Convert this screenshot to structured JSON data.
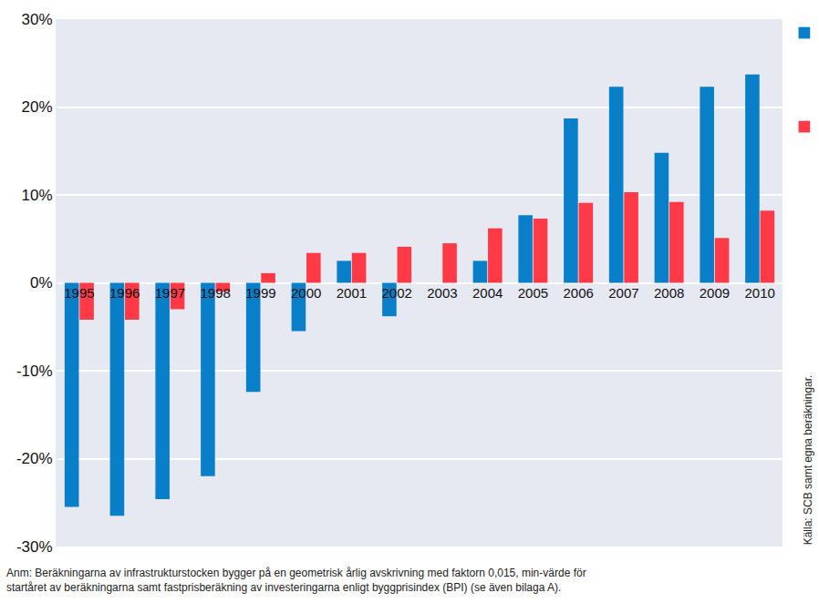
{
  "chart_data": {
    "type": "bar",
    "categories": [
      "1995",
      "1996",
      "1997",
      "1998",
      "1999",
      "2000",
      "2001",
      "2002",
      "2003",
      "2004",
      "2005",
      "2006",
      "2007",
      "2008",
      "2009",
      "2010"
    ],
    "series": [
      {
        "color": "#0a7fc9",
        "values": [
          -25.5,
          -26.5,
          -24.6,
          -22.0,
          -12.4,
          -5.5,
          2.5,
          -3.8,
          0,
          2.5,
          7.7,
          18.7,
          22.3,
          14.8,
          22.3,
          23.7
        ]
      },
      {
        "color": "#ff3a46",
        "values": [
          -4.2,
          -4.2,
          -3.0,
          -1.0,
          1.1,
          3.4,
          3.4,
          4.1,
          4.5,
          6.2,
          7.3,
          9.1,
          10.3,
          9.2,
          5.1,
          8.2
        ]
      }
    ],
    "ylim": [
      -30,
      30
    ],
    "yticks": [
      {
        "value": -30,
        "label": "-30%"
      },
      {
        "value": -20,
        "label": "-20%"
      },
      {
        "value": -10,
        "label": "-10%"
      },
      {
        "value": 0,
        "label": "0%"
      },
      {
        "value": 10,
        "label": "10%"
      },
      {
        "value": 20,
        "label": "20%"
      },
      {
        "value": 30,
        "label": "30%"
      }
    ],
    "grid": true,
    "source": "Källa: SCB samt egna beräkningar.",
    "note": [
      "Anm: Beräkningarna av infrastrukturstocken bygger på en geometrisk årlig avskrivning med faktorn 0,015, min-värde för",
      "startåret av beräkningarna samt fastprisberäkning av investeringarna enligt byggprisindex (BPI) (se även bilaga A)."
    ]
  }
}
